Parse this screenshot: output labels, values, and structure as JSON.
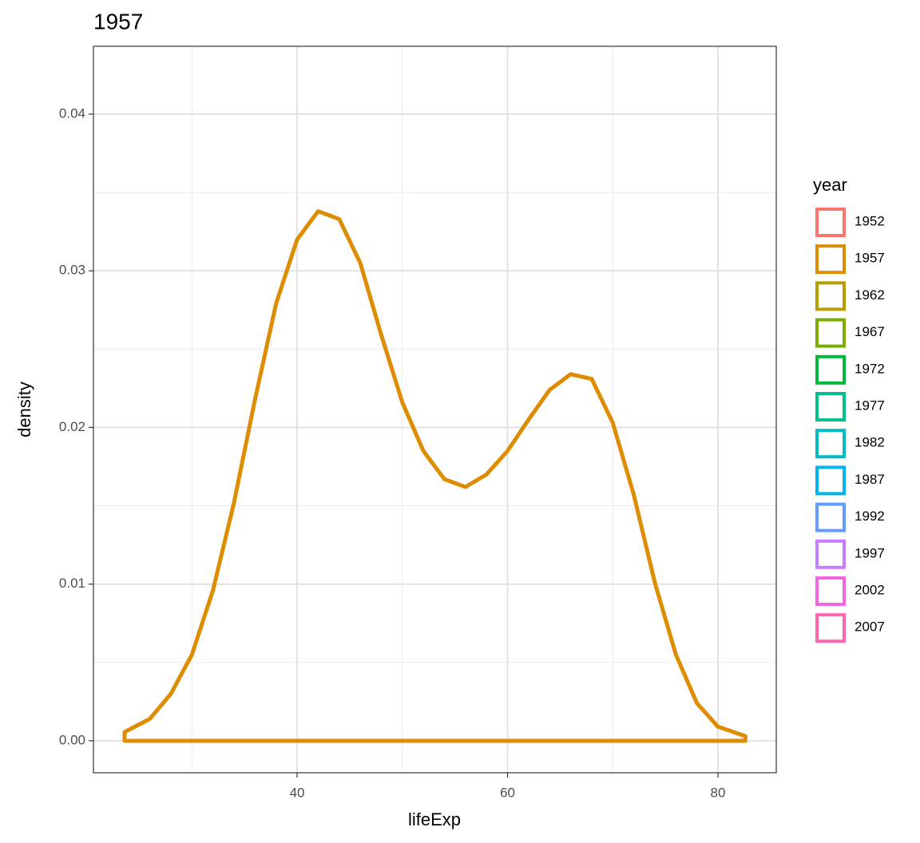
{
  "chart_data": {
    "type": "density",
    "title": "1957",
    "x_label": "lifeExp",
    "y_label": "density",
    "xlim": [
      20.64,
      85.54
    ],
    "ylim": [
      -0.00204,
      0.04433
    ],
    "xticks": [
      40,
      60,
      80
    ],
    "minor_xticks": [
      30,
      50,
      70
    ],
    "yticks": [
      {
        "value": 0,
        "label": "0.00"
      },
      0.01,
      0.02,
      0.03,
      0.04
    ],
    "minor_yticks": [
      0.005,
      0.015,
      0.025,
      0.035
    ],
    "grid": true,
    "series": [
      {
        "color": "#DE8C00",
        "x": [
          23.6,
          26,
          28,
          30,
          32,
          34,
          36,
          38,
          40,
          42,
          44,
          46,
          48,
          50,
          52,
          54,
          56,
          58,
          60,
          62,
          64,
          66,
          68,
          70,
          72,
          74,
          76,
          78,
          80,
          82.6
        ],
        "values": [
          0.00056,
          0.0014,
          0.003,
          0.0055,
          0.0096,
          0.0152,
          0.0218,
          0.0279,
          0.032,
          0.0338,
          0.0333,
          0.0305,
          0.0259,
          0.0216,
          0.0185,
          0.0167,
          0.0162,
          0.017,
          0.0185,
          0.0205,
          0.0224,
          0.0234,
          0.0231,
          0.0203,
          0.0157,
          0.0101,
          0.0055,
          0.0024,
          0.0009,
          0.0003
        ]
      }
    ],
    "legend": {
      "title": "year",
      "position": "right",
      "items": [
        {
          "label": "1952",
          "color": "#F8766D"
        },
        {
          "label": "1957",
          "color": "#DE8C00"
        },
        {
          "label": "1962",
          "color": "#B79F00"
        },
        {
          "label": "1967",
          "color": "#7CAE00"
        },
        {
          "label": "1972",
          "color": "#00BA38"
        },
        {
          "label": "1977",
          "color": "#00C08B"
        },
        {
          "label": "1982",
          "color": "#00BFC4"
        },
        {
          "label": "1987",
          "color": "#00B4F0"
        },
        {
          "label": "1992",
          "color": "#619CFF"
        },
        {
          "label": "1997",
          "color": "#C77CFF"
        },
        {
          "label": "2002",
          "color": "#F564E3"
        },
        {
          "label": "2007",
          "color": "#FF64B0"
        }
      ]
    }
  }
}
